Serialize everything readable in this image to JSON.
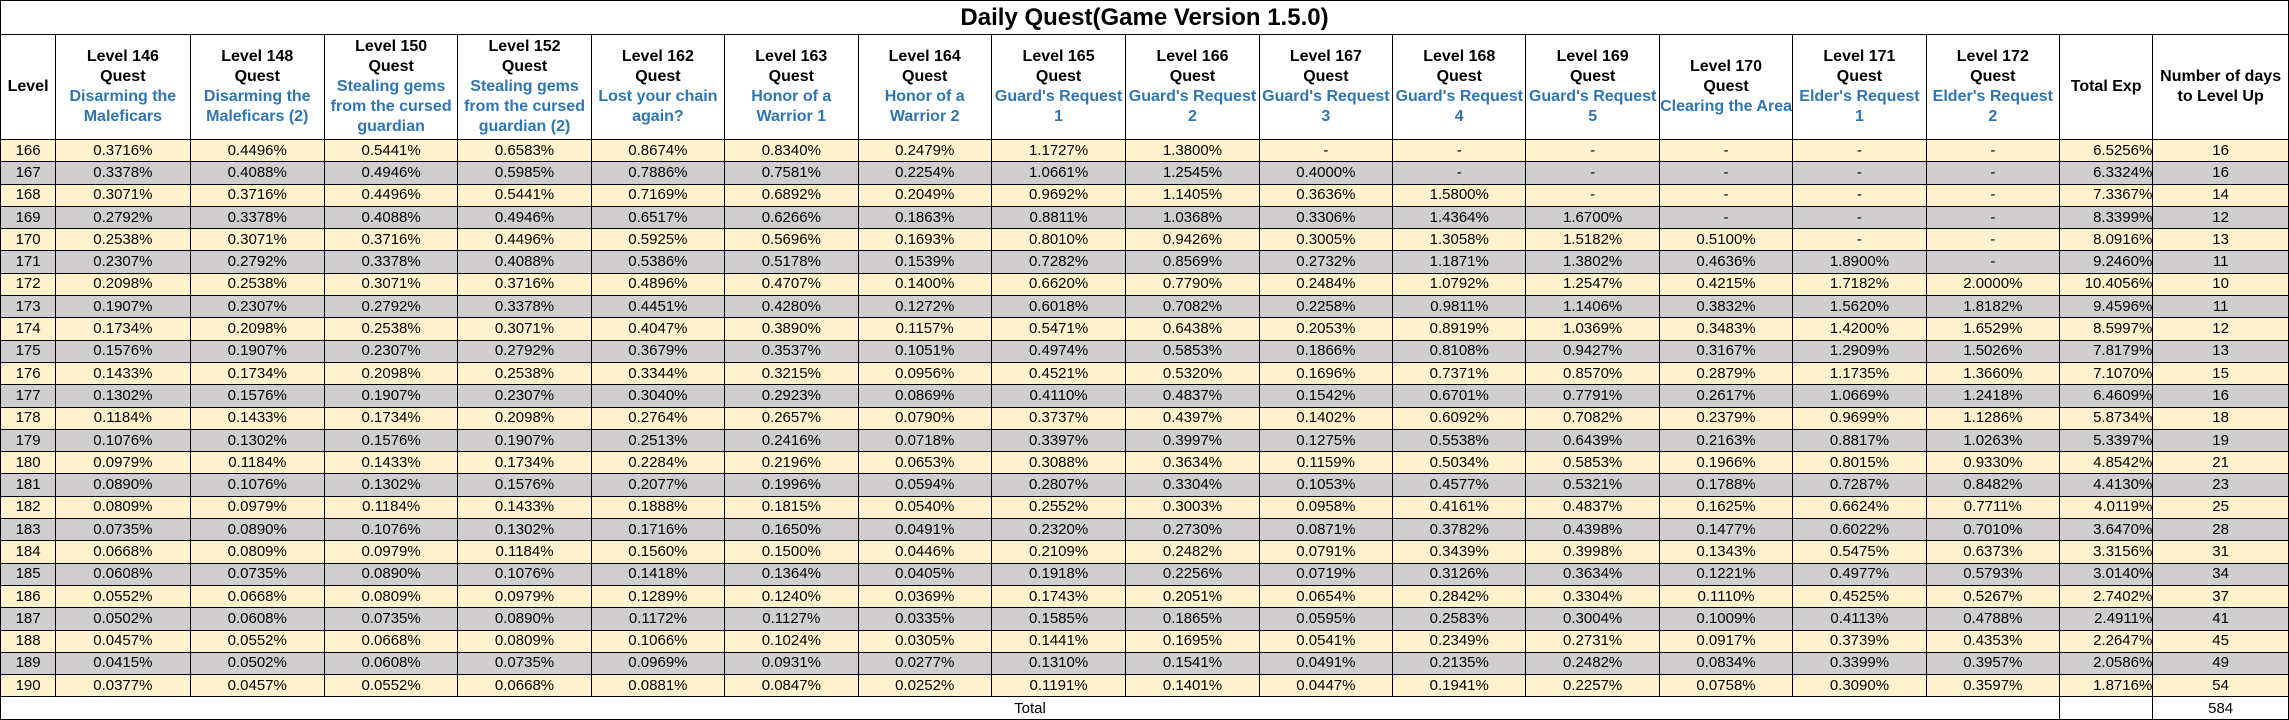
{
  "title": "Daily Quest(Game Version 1.5.0)",
  "columns": [
    {
      "level": "Level",
      "quest": ""
    },
    {
      "level": "Level 146",
      "sub": "Quest",
      "quest": "Disarming the Maleficars"
    },
    {
      "level": "Level 148",
      "sub": "Quest",
      "quest": "Disarming the Maleficars (2)"
    },
    {
      "level": "Level 150",
      "sub": "Quest",
      "quest": "Stealing gems from the cursed guardian"
    },
    {
      "level": "Level 152",
      "sub": "Quest",
      "quest": "Stealing gems from the cursed guardian (2)"
    },
    {
      "level": "Level 162",
      "sub": "Quest",
      "quest": "Lost your chain again?"
    },
    {
      "level": "Level 163",
      "sub": "Quest",
      "quest": "Honor of a Warrior 1"
    },
    {
      "level": "Level 164",
      "sub": "Quest",
      "quest": "Honor of a Warrior 2"
    },
    {
      "level": "Level 165",
      "sub": "Quest",
      "quest": "Guard's Request 1"
    },
    {
      "level": "Level 166",
      "sub": "Quest",
      "quest": "Guard's Request 2"
    },
    {
      "level": "Level 167",
      "sub": "Quest",
      "quest": "Guard's Request 3"
    },
    {
      "level": "Level 168",
      "sub": "Quest",
      "quest": "Guard's Request 4"
    },
    {
      "level": "Level 169",
      "sub": "Quest",
      "quest": "Guard's Request 5"
    },
    {
      "level": "Level 170",
      "sub": "Quest",
      "quest": "Clearing the Area"
    },
    {
      "level": "Level 171",
      "sub": "Quest",
      "quest": "Elder's Request 1"
    },
    {
      "level": "Level 172",
      "sub": "Quest",
      "quest": "Elder's Request 2"
    },
    {
      "level": "Total Exp",
      "quest": ""
    },
    {
      "level": "Number of days to Level Up",
      "quest": ""
    }
  ],
  "rows": [
    [
      "166",
      "0.3716%",
      "0.4496%",
      "0.5441%",
      "0.6583%",
      "0.8674%",
      "0.8340%",
      "0.2479%",
      "1.1727%",
      "1.3800%",
      "-",
      "-",
      "-",
      "-",
      "-",
      "-",
      "6.5256%",
      "16"
    ],
    [
      "167",
      "0.3378%",
      "0.4088%",
      "0.4946%",
      "0.5985%",
      "0.7886%",
      "0.7581%",
      "0.2254%",
      "1.0661%",
      "1.2545%",
      "0.4000%",
      "-",
      "-",
      "-",
      "-",
      "-",
      "6.3324%",
      "16"
    ],
    [
      "168",
      "0.3071%",
      "0.3716%",
      "0.4496%",
      "0.5441%",
      "0.7169%",
      "0.6892%",
      "0.2049%",
      "0.9692%",
      "1.1405%",
      "0.3636%",
      "1.5800%",
      "-",
      "-",
      "-",
      "-",
      "7.3367%",
      "14"
    ],
    [
      "169",
      "0.2792%",
      "0.3378%",
      "0.4088%",
      "0.4946%",
      "0.6517%",
      "0.6266%",
      "0.1863%",
      "0.8811%",
      "1.0368%",
      "0.3306%",
      "1.4364%",
      "1.6700%",
      "-",
      "-",
      "-",
      "8.3399%",
      "12"
    ],
    [
      "170",
      "0.2538%",
      "0.3071%",
      "0.3716%",
      "0.4496%",
      "0.5925%",
      "0.5696%",
      "0.1693%",
      "0.8010%",
      "0.9426%",
      "0.3005%",
      "1.3058%",
      "1.5182%",
      "0.5100%",
      "-",
      "-",
      "8.0916%",
      "13"
    ],
    [
      "171",
      "0.2307%",
      "0.2792%",
      "0.3378%",
      "0.4088%",
      "0.5386%",
      "0.5178%",
      "0.1539%",
      "0.7282%",
      "0.8569%",
      "0.2732%",
      "1.1871%",
      "1.3802%",
      "0.4636%",
      "1.8900%",
      "-",
      "9.2460%",
      "11"
    ],
    [
      "172",
      "0.2098%",
      "0.2538%",
      "0.3071%",
      "0.3716%",
      "0.4896%",
      "0.4707%",
      "0.1400%",
      "0.6620%",
      "0.7790%",
      "0.2484%",
      "1.0792%",
      "1.2547%",
      "0.4215%",
      "1.7182%",
      "2.0000%",
      "10.4056%",
      "10"
    ],
    [
      "173",
      "0.1907%",
      "0.2307%",
      "0.2792%",
      "0.3378%",
      "0.4451%",
      "0.4280%",
      "0.1272%",
      "0.6018%",
      "0.7082%",
      "0.2258%",
      "0.9811%",
      "1.1406%",
      "0.3832%",
      "1.5620%",
      "1.8182%",
      "9.4596%",
      "11"
    ],
    [
      "174",
      "0.1734%",
      "0.2098%",
      "0.2538%",
      "0.3071%",
      "0.4047%",
      "0.3890%",
      "0.1157%",
      "0.5471%",
      "0.6438%",
      "0.2053%",
      "0.8919%",
      "1.0369%",
      "0.3483%",
      "1.4200%",
      "1.6529%",
      "8.5997%",
      "12"
    ],
    [
      "175",
      "0.1576%",
      "0.1907%",
      "0.2307%",
      "0.2792%",
      "0.3679%",
      "0.3537%",
      "0.1051%",
      "0.4974%",
      "0.5853%",
      "0.1866%",
      "0.8108%",
      "0.9427%",
      "0.3167%",
      "1.2909%",
      "1.5026%",
      "7.8179%",
      "13"
    ],
    [
      "176",
      "0.1433%",
      "0.1734%",
      "0.2098%",
      "0.2538%",
      "0.3344%",
      "0.3215%",
      "0.0956%",
      "0.4521%",
      "0.5320%",
      "0.1696%",
      "0.7371%",
      "0.8570%",
      "0.2879%",
      "1.1735%",
      "1.3660%",
      "7.1070%",
      "15"
    ],
    [
      "177",
      "0.1302%",
      "0.1576%",
      "0.1907%",
      "0.2307%",
      "0.3040%",
      "0.2923%",
      "0.0869%",
      "0.4110%",
      "0.4837%",
      "0.1542%",
      "0.6701%",
      "0.7791%",
      "0.2617%",
      "1.0669%",
      "1.2418%",
      "6.4609%",
      "16"
    ],
    [
      "178",
      "0.1184%",
      "0.1433%",
      "0.1734%",
      "0.2098%",
      "0.2764%",
      "0.2657%",
      "0.0790%",
      "0.3737%",
      "0.4397%",
      "0.1402%",
      "0.6092%",
      "0.7082%",
      "0.2379%",
      "0.9699%",
      "1.1286%",
      "5.8734%",
      "18"
    ],
    [
      "179",
      "0.1076%",
      "0.1302%",
      "0.1576%",
      "0.1907%",
      "0.2513%",
      "0.2416%",
      "0.0718%",
      "0.3397%",
      "0.3997%",
      "0.1275%",
      "0.5538%",
      "0.6439%",
      "0.2163%",
      "0.8817%",
      "1.0263%",
      "5.3397%",
      "19"
    ],
    [
      "180",
      "0.0979%",
      "0.1184%",
      "0.1433%",
      "0.1734%",
      "0.2284%",
      "0.2196%",
      "0.0653%",
      "0.3088%",
      "0.3634%",
      "0.1159%",
      "0.5034%",
      "0.5853%",
      "0.1966%",
      "0.8015%",
      "0.9330%",
      "4.8542%",
      "21"
    ],
    [
      "181",
      "0.0890%",
      "0.1076%",
      "0.1302%",
      "0.1576%",
      "0.2077%",
      "0.1996%",
      "0.0594%",
      "0.2807%",
      "0.3304%",
      "0.1053%",
      "0.4577%",
      "0.5321%",
      "0.1788%",
      "0.7287%",
      "0.8482%",
      "4.4130%",
      "23"
    ],
    [
      "182",
      "0.0809%",
      "0.0979%",
      "0.1184%",
      "0.1433%",
      "0.1888%",
      "0.1815%",
      "0.0540%",
      "0.2552%",
      "0.3003%",
      "0.0958%",
      "0.4161%",
      "0.4837%",
      "0.1625%",
      "0.6624%",
      "0.7711%",
      "4.0119%",
      "25"
    ],
    [
      "183",
      "0.0735%",
      "0.0890%",
      "0.1076%",
      "0.1302%",
      "0.1716%",
      "0.1650%",
      "0.0491%",
      "0.2320%",
      "0.2730%",
      "0.0871%",
      "0.3782%",
      "0.4398%",
      "0.1477%",
      "0.6022%",
      "0.7010%",
      "3.6470%",
      "28"
    ],
    [
      "184",
      "0.0668%",
      "0.0809%",
      "0.0979%",
      "0.1184%",
      "0.1560%",
      "0.1500%",
      "0.0446%",
      "0.2109%",
      "0.2482%",
      "0.0791%",
      "0.3439%",
      "0.3998%",
      "0.1343%",
      "0.5475%",
      "0.6373%",
      "3.3156%",
      "31"
    ],
    [
      "185",
      "0.0608%",
      "0.0735%",
      "0.0890%",
      "0.1076%",
      "0.1418%",
      "0.1364%",
      "0.0405%",
      "0.1918%",
      "0.2256%",
      "0.0719%",
      "0.3126%",
      "0.3634%",
      "0.1221%",
      "0.4977%",
      "0.5793%",
      "3.0140%",
      "34"
    ],
    [
      "186",
      "0.0552%",
      "0.0668%",
      "0.0809%",
      "0.0979%",
      "0.1289%",
      "0.1240%",
      "0.0369%",
      "0.1743%",
      "0.2051%",
      "0.0654%",
      "0.2842%",
      "0.3304%",
      "0.1110%",
      "0.4525%",
      "0.5267%",
      "2.7402%",
      "37"
    ],
    [
      "187",
      "0.0502%",
      "0.0608%",
      "0.0735%",
      "0.0890%",
      "0.1172%",
      "0.1127%",
      "0.0335%",
      "0.1585%",
      "0.1865%",
      "0.0595%",
      "0.2583%",
      "0.3004%",
      "0.1009%",
      "0.4113%",
      "0.4788%",
      "2.4911%",
      "41"
    ],
    [
      "188",
      "0.0457%",
      "0.0552%",
      "0.0668%",
      "0.0809%",
      "0.1066%",
      "0.1024%",
      "0.0305%",
      "0.1441%",
      "0.1695%",
      "0.0541%",
      "0.2349%",
      "0.2731%",
      "0.0917%",
      "0.3739%",
      "0.4353%",
      "2.2647%",
      "45"
    ],
    [
      "189",
      "0.0415%",
      "0.0502%",
      "0.0608%",
      "0.0735%",
      "0.0969%",
      "0.0931%",
      "0.0277%",
      "0.1310%",
      "0.1541%",
      "0.0491%",
      "0.2135%",
      "0.2482%",
      "0.0834%",
      "0.3399%",
      "0.3957%",
      "2.0586%",
      "49"
    ],
    [
      "190",
      "0.0377%",
      "0.0457%",
      "0.0552%",
      "0.0668%",
      "0.0881%",
      "0.0847%",
      "0.0252%",
      "0.1191%",
      "0.1401%",
      "0.0447%",
      "0.1941%",
      "0.2257%",
      "0.0758%",
      "0.3090%",
      "0.3597%",
      "1.8716%",
      "54"
    ]
  ],
  "total_label": "Total",
  "total_days": "584",
  "colors": {
    "header_quest": "#2e75b6",
    "row_light": "#fff2cc",
    "row_dark": "#d0cece"
  }
}
